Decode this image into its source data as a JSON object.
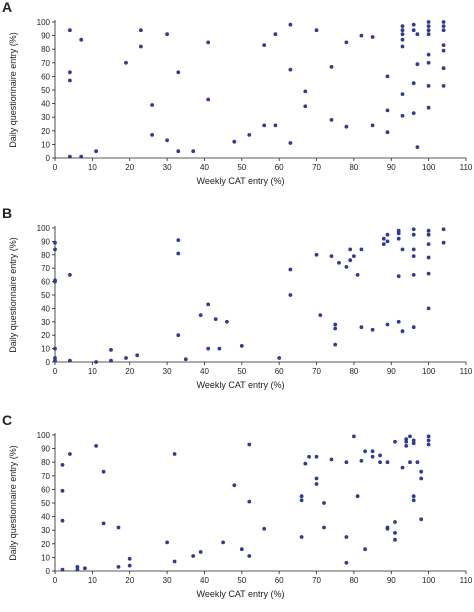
{
  "chart_data": [
    {
      "panel": "A",
      "type": "scatter",
      "xlabel": "Weekly CAT entry (%)",
      "ylabel": "Daily questionnaire entry (%)",
      "xlim": [
        0,
        110
      ],
      "ylim": [
        0,
        100
      ],
      "xticks": [
        0,
        10,
        20,
        30,
        40,
        50,
        60,
        70,
        80,
        90,
        100,
        110
      ],
      "yticks": [
        0,
        10,
        20,
        30,
        40,
        50,
        60,
        70,
        80,
        90,
        100
      ],
      "grid": false,
      "points": [
        [
          4,
          1
        ],
        [
          4,
          63
        ],
        [
          4,
          57
        ],
        [
          4,
          94
        ],
        [
          7,
          87
        ],
        [
          7,
          1
        ],
        [
          11,
          5
        ],
        [
          19,
          70
        ],
        [
          23,
          94
        ],
        [
          23,
          82
        ],
        [
          26,
          39
        ],
        [
          26,
          17
        ],
        [
          30,
          91
        ],
        [
          30,
          13
        ],
        [
          33,
          63
        ],
        [
          33,
          5
        ],
        [
          37,
          5
        ],
        [
          41,
          85
        ],
        [
          41,
          43
        ],
        [
          48,
          12
        ],
        [
          52,
          17
        ],
        [
          56,
          24
        ],
        [
          56,
          83
        ],
        [
          59,
          24
        ],
        [
          59,
          91
        ],
        [
          63,
          98
        ],
        [
          63,
          65
        ],
        [
          63,
          11
        ],
        [
          67,
          49
        ],
        [
          67,
          38
        ],
        [
          70,
          94
        ],
        [
          74,
          67
        ],
        [
          74,
          28
        ],
        [
          78,
          85
        ],
        [
          78,
          23
        ],
        [
          82,
          90
        ],
        [
          85,
          89
        ],
        [
          85,
          24
        ],
        [
          89,
          60
        ],
        [
          89,
          35
        ],
        [
          89,
          19
        ],
        [
          93,
          97
        ],
        [
          93,
          94
        ],
        [
          93,
          91
        ],
        [
          93,
          87
        ],
        [
          93,
          82
        ],
        [
          93,
          47
        ],
        [
          93,
          31
        ],
        [
          96,
          98
        ],
        [
          96,
          94
        ],
        [
          96,
          55
        ],
        [
          96,
          33
        ],
        [
          97,
          69
        ],
        [
          97,
          8
        ],
        [
          97,
          91
        ],
        [
          100,
          100
        ],
        [
          100,
          97
        ],
        [
          100,
          94
        ],
        [
          100,
          91
        ],
        [
          100,
          76
        ],
        [
          100,
          70
        ],
        [
          100,
          53
        ],
        [
          100,
          37
        ],
        [
          104,
          100
        ],
        [
          104,
          97
        ],
        [
          104,
          94
        ],
        [
          104,
          83
        ],
        [
          104,
          79
        ],
        [
          104,
          66
        ],
        [
          104,
          53
        ]
      ]
    },
    {
      "panel": "B",
      "type": "scatter",
      "xlabel": "Weekly CAT entry (%)",
      "ylabel": "Daily questionnaire entry (%)",
      "xlim": [
        0,
        110
      ],
      "ylim": [
        0,
        100
      ],
      "xticks": [
        0,
        10,
        20,
        30,
        40,
        50,
        60,
        70,
        80,
        90,
        100,
        110
      ],
      "yticks": [
        0,
        10,
        20,
        30,
        40,
        50,
        60,
        70,
        80,
        90,
        100
      ],
      "grid": false,
      "points": [
        [
          0,
          89
        ],
        [
          0,
          84
        ],
        [
          0,
          61
        ],
        [
          0,
          60
        ],
        [
          0,
          10
        ],
        [
          0,
          3
        ],
        [
          0,
          1
        ],
        [
          4,
          65
        ],
        [
          4,
          1
        ],
        [
          11,
          0
        ],
        [
          15,
          9
        ],
        [
          15,
          1
        ],
        [
          19,
          3
        ],
        [
          22,
          5
        ],
        [
          33,
          91
        ],
        [
          33,
          81
        ],
        [
          33,
          20
        ],
        [
          35,
          2
        ],
        [
          39,
          35
        ],
        [
          41,
          43
        ],
        [
          41,
          10
        ],
        [
          43,
          32
        ],
        [
          44,
          10
        ],
        [
          46,
          30
        ],
        [
          50,
          12
        ],
        [
          60,
          3
        ],
        [
          63,
          50
        ],
        [
          63,
          69
        ],
        [
          70,
          80
        ],
        [
          71,
          35
        ],
        [
          74,
          79
        ],
        [
          75,
          28
        ],
        [
          75,
          13
        ],
        [
          75,
          25
        ],
        [
          76,
          74
        ],
        [
          78,
          71
        ],
        [
          79,
          76
        ],
        [
          79,
          84
        ],
        [
          80,
          79
        ],
        [
          81,
          65
        ],
        [
          82,
          84
        ],
        [
          82,
          26
        ],
        [
          85,
          24
        ],
        [
          88,
          88
        ],
        [
          88,
          92
        ],
        [
          89,
          28
        ],
        [
          89,
          90
        ],
        [
          89,
          95
        ],
        [
          92,
          96
        ],
        [
          92,
          98
        ],
        [
          92,
          92
        ],
        [
          92,
          64
        ],
        [
          92,
          30
        ],
        [
          93,
          23
        ],
        [
          93,
          84
        ],
        [
          96,
          99
        ],
        [
          96,
          95
        ],
        [
          96,
          84
        ],
        [
          96,
          79
        ],
        [
          96,
          65
        ],
        [
          96,
          26
        ],
        [
          100,
          98
        ],
        [
          100,
          95
        ],
        [
          100,
          88
        ],
        [
          100,
          78
        ],
        [
          100,
          66
        ],
        [
          100,
          40
        ],
        [
          104,
          99
        ],
        [
          104,
          89
        ]
      ]
    },
    {
      "panel": "C",
      "type": "scatter",
      "xlabel": "Weekly CAT entry (%)",
      "ylabel": "Daily questionnaire entry (%)",
      "xlim": [
        0,
        110
      ],
      "ylim": [
        0,
        100
      ],
      "xticks": [
        0,
        10,
        20,
        30,
        40,
        50,
        60,
        70,
        80,
        90,
        100,
        110
      ],
      "yticks": [
        0,
        10,
        20,
        30,
        40,
        50,
        60,
        70,
        80,
        90,
        100
      ],
      "grid": false,
      "points": [
        [
          2,
          1
        ],
        [
          2,
          78
        ],
        [
          2,
          59
        ],
        [
          2,
          37
        ],
        [
          4,
          86
        ],
        [
          6,
          3
        ],
        [
          6,
          1
        ],
        [
          8,
          2
        ],
        [
          11,
          92
        ],
        [
          13,
          73
        ],
        [
          13,
          35
        ],
        [
          17,
          32
        ],
        [
          17,
          3
        ],
        [
          20,
          9
        ],
        [
          20,
          4
        ],
        [
          30,
          21
        ],
        [
          32,
          86
        ],
        [
          32,
          7
        ],
        [
          37,
          11
        ],
        [
          39,
          14
        ],
        [
          45,
          21
        ],
        [
          48,
          63
        ],
        [
          50,
          16
        ],
        [
          52,
          93
        ],
        [
          52,
          51
        ],
        [
          52,
          11
        ],
        [
          56,
          31
        ],
        [
          66,
          55
        ],
        [
          66,
          52
        ],
        [
          66,
          25
        ],
        [
          67,
          79
        ],
        [
          68,
          84
        ],
        [
          70,
          84
        ],
        [
          70,
          68
        ],
        [
          70,
          64
        ],
        [
          72,
          32
        ],
        [
          72,
          50
        ],
        [
          74,
          82
        ],
        [
          78,
          80
        ],
        [
          78,
          25
        ],
        [
          78,
          6
        ],
        [
          80,
          99
        ],
        [
          81,
          55
        ],
        [
          82,
          81
        ],
        [
          83,
          88
        ],
        [
          83,
          16
        ],
        [
          85,
          84
        ],
        [
          85,
          88
        ],
        [
          87,
          80
        ],
        [
          87,
          85
        ],
        [
          89,
          31
        ],
        [
          89,
          32
        ],
        [
          89,
          80
        ],
        [
          91,
          36
        ],
        [
          91,
          23
        ],
        [
          91,
          28
        ],
        [
          91,
          95
        ],
        [
          93,
          76
        ],
        [
          94,
          95
        ],
        [
          94,
          92
        ],
        [
          94,
          97
        ],
        [
          95,
          99
        ],
        [
          95,
          80
        ],
        [
          96,
          94
        ],
        [
          96,
          55
        ],
        [
          96,
          52
        ],
        [
          96,
          96
        ],
        [
          97,
          80
        ],
        [
          98,
          73
        ],
        [
          98,
          68
        ],
        [
          98,
          38
        ],
        [
          100,
          99
        ],
        [
          100,
          96
        ],
        [
          100,
          93
        ]
      ]
    }
  ]
}
